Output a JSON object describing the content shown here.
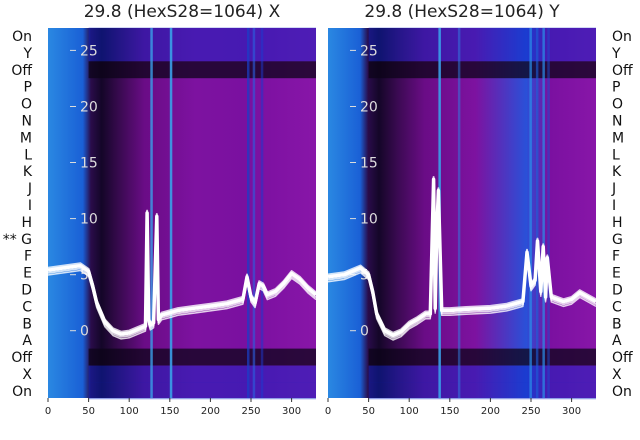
{
  "chart_data": [
    {
      "type": "heatmap",
      "title": "29.8 (HexS28=1064) X",
      "xlabel": "",
      "ylabel": "",
      "xlim": [
        0,
        330
      ],
      "x_ticks": [
        0,
        50,
        100,
        150,
        200,
        250,
        300
      ],
      "rows": [
        "On",
        "Y",
        "Off",
        "P",
        "O",
        "N",
        "M",
        "L",
        "K",
        "J",
        "I",
        "H",
        "** G",
        "F",
        "E",
        "D",
        "C",
        "B",
        "A",
        "Off",
        "X",
        "On"
      ],
      "overlay": {
        "type": "line",
        "ylim": [
          -6,
          27
        ],
        "y_ticks": [
          0,
          5,
          10,
          15,
          20,
          25
        ],
        "x": [
          0,
          20,
          40,
          50,
          55,
          60,
          70,
          80,
          90,
          100,
          110,
          120,
          122,
          124,
          126,
          130,
          134,
          136,
          140,
          150,
          160,
          180,
          200,
          220,
          240,
          245,
          250,
          255,
          260,
          265,
          270,
          280,
          290,
          300,
          310,
          320,
          330
        ],
        "y": [
          5.4,
          5.6,
          5.8,
          5.3,
          4.0,
          2.5,
          0.8,
          0.0,
          -0.3,
          -0.2,
          0.1,
          0.4,
          10.5,
          1.0,
          0.5,
          0.7,
          10.2,
          1.0,
          1.4,
          1.6,
          1.8,
          2.0,
          2.2,
          2.4,
          2.8,
          4.8,
          3.0,
          2.5,
          4.2,
          4.0,
          3.2,
          3.5,
          4.2,
          5.1,
          4.6,
          3.8,
          3.2
        ]
      },
      "grid": false,
      "colors": [
        "#05087a",
        "#0b3ae0",
        "#1b6ad8",
        "#3a93e6",
        "#1a0a3a",
        "#3b0a4e",
        "#6a0c83",
        "#8a14a6",
        "#10c060"
      ]
    },
    {
      "type": "heatmap",
      "title": "29.8 (HexS28=1064) Y",
      "xlabel": "",
      "ylabel": "",
      "xlim": [
        0,
        330
      ],
      "x_ticks": [
        0,
        50,
        100,
        150,
        200,
        250,
        300
      ],
      "rows": [
        "On",
        "Y",
        "Off",
        "P",
        "O",
        "N",
        "M",
        "L",
        "K",
        "J",
        "I",
        "H",
        "G",
        "F",
        "E",
        "D",
        "C",
        "B",
        "A",
        "Off",
        "X",
        "On"
      ],
      "overlay": {
        "type": "line",
        "ylim": [
          -6,
          27
        ],
        "y_ticks": [
          0,
          5,
          10,
          15,
          20,
          25
        ],
        "x": [
          0,
          20,
          40,
          50,
          55,
          60,
          70,
          80,
          90,
          100,
          110,
          120,
          126,
          130,
          132,
          134,
          136,
          140,
          150,
          170,
          200,
          220,
          240,
          245,
          250,
          255,
          258,
          262,
          265,
          268,
          270,
          275,
          290,
          300,
          310,
          320,
          330
        ],
        "y": [
          4.8,
          5.0,
          5.6,
          5.0,
          3.5,
          1.5,
          0.0,
          -0.4,
          -0.1,
          0.6,
          1.0,
          1.5,
          1.5,
          13.5,
          2.0,
          9.0,
          12.5,
          1.8,
          1.8,
          1.9,
          2.0,
          2.2,
          2.6,
          7.0,
          4.0,
          4.5,
          8.0,
          3.5,
          7.5,
          3.0,
          6.5,
          3.0,
          2.6,
          2.8,
          3.4,
          3.0,
          2.6
        ]
      },
      "grid": false,
      "colors": [
        "#05087a",
        "#0b3ae0",
        "#1b6ad8",
        "#3a93e6",
        "#1a0a3a",
        "#3b0a4e",
        "#6a0c83",
        "#8a14a6",
        "#10c060"
      ]
    }
  ]
}
